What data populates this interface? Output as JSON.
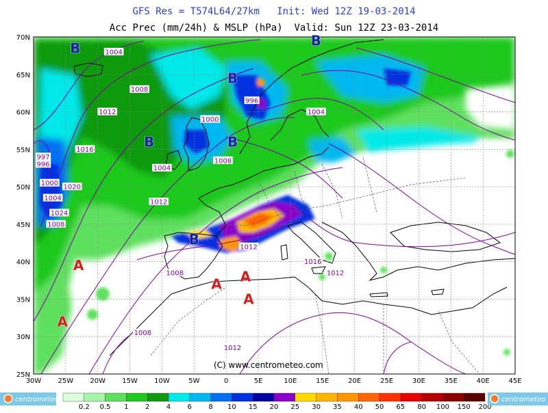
{
  "title_line1": "GFS Res = T574L64/27km   Init: Wed 12Z 19-03-2014",
  "title_line2": "Acc Prec (mm/24h) & MSLP (hPa)  Valid: Sun 12Z 23-03-2014",
  "copyright": "(C)  www.centrometeo.com",
  "brand": "centrometeo",
  "lat_labels": [
    "70N",
    "65N",
    "60N",
    "55N",
    "50N",
    "45N",
    "40N",
    "35N",
    "30N",
    "25N"
  ],
  "lon_labels": [
    "30W",
    "25W",
    "20W",
    "15W",
    "10W",
    "5W",
    "0",
    "5E",
    "10E",
    "15E",
    "20E",
    "25E",
    "30E",
    "35E",
    "40E",
    "45E"
  ],
  "legend": {
    "values": [
      "0.2",
      "0.5",
      "1",
      "2",
      "4",
      "6",
      "8",
      "10",
      "15",
      "20",
      "25",
      "30",
      "35",
      "40",
      "50",
      "65",
      "80",
      "100",
      "150",
      "200"
    ],
    "colors": [
      "#dcffdc",
      "#a6f5a6",
      "#5ee05e",
      "#1ec81e",
      "#109a10",
      "#00e8e8",
      "#00b8f0",
      "#0070f0",
      "#0030e0",
      "#0000a0",
      "#8c00c8",
      "#ffdc00",
      "#ffb400",
      "#ff9600",
      "#ff6400",
      "#ff3200",
      "#e60000",
      "#b40000",
      "#8c0000",
      "#5a0000"
    ]
  },
  "pressure_labels": [
    {
      "text": "1004",
      "x": -17.5,
      "y": 68.0
    },
    {
      "text": "1008",
      "x": -13.5,
      "y": 63.0
    },
    {
      "text": "1012",
      "x": -18.5,
      "y": 60.0
    },
    {
      "text": "1016",
      "x": -22.0,
      "y": 55.0
    },
    {
      "text": "1020",
      "x": -24.0,
      "y": 50.0
    },
    {
      "text": "1024",
      "x": -26.0,
      "y": 46.5
    },
    {
      "text": "997",
      "x": -28.5,
      "y": 54.0
    },
    {
      "text": "996",
      "x": -28.5,
      "y": 53.0
    },
    {
      "text": "1000",
      "x": -27.5,
      "y": 50.5
    },
    {
      "text": "1004",
      "x": -27.0,
      "y": 48.5
    },
    {
      "text": "1008",
      "x": -26.5,
      "y": 45.0
    },
    {
      "text": "1004",
      "x": -10.0,
      "y": 52.5
    },
    {
      "text": "1012",
      "x": -10.5,
      "y": 48.0
    },
    {
      "text": "1000",
      "x": -2.5,
      "y": 59.0
    },
    {
      "text": "996",
      "x": 4.0,
      "y": 61.5
    },
    {
      "text": "1004",
      "x": 14.0,
      "y": 60.0
    },
    {
      "text": "1008",
      "x": -0.5,
      "y": 53.5
    },
    {
      "text": "1012",
      "x": 3.5,
      "y": 42.0
    },
    {
      "text": "1016",
      "x": 13.5,
      "y": 40.0
    },
    {
      "text": "1012",
      "x": 17.0,
      "y": 38.5
    },
    {
      "text": "1008",
      "x": -8.0,
      "y": 38.5
    },
    {
      "text": "1008",
      "x": -13.0,
      "y": 30.5
    },
    {
      "text": "1012",
      "x": 1.0,
      "y": 28.5
    }
  ],
  "pressure_centers": [
    {
      "text": "B",
      "x": -23.5,
      "y": 68.5,
      "kind": "low"
    },
    {
      "text": "B",
      "x": 1.0,
      "y": 64.5,
      "kind": "low"
    },
    {
      "text": "B",
      "x": 14.0,
      "y": 69.5,
      "kind": "low"
    },
    {
      "text": "B",
      "x": -12.0,
      "y": 56.0,
      "kind": "low"
    },
    {
      "text": "B",
      "x": 1.0,
      "y": 56.0,
      "kind": "low"
    },
    {
      "text": "B",
      "x": -5.0,
      "y": 43.0,
      "kind": "low"
    },
    {
      "text": "A",
      "x": -23.0,
      "y": 39.5,
      "kind": "high"
    },
    {
      "text": "A",
      "x": -25.5,
      "y": 32.0,
      "kind": "high"
    },
    {
      "text": "A",
      "x": -1.5,
      "y": 37.0,
      "kind": "high"
    },
    {
      "text": "A",
      "x": 3.0,
      "y": 38.0,
      "kind": "high"
    },
    {
      "text": "A",
      "x": 3.5,
      "y": 35.0,
      "kind": "high"
    }
  ]
}
